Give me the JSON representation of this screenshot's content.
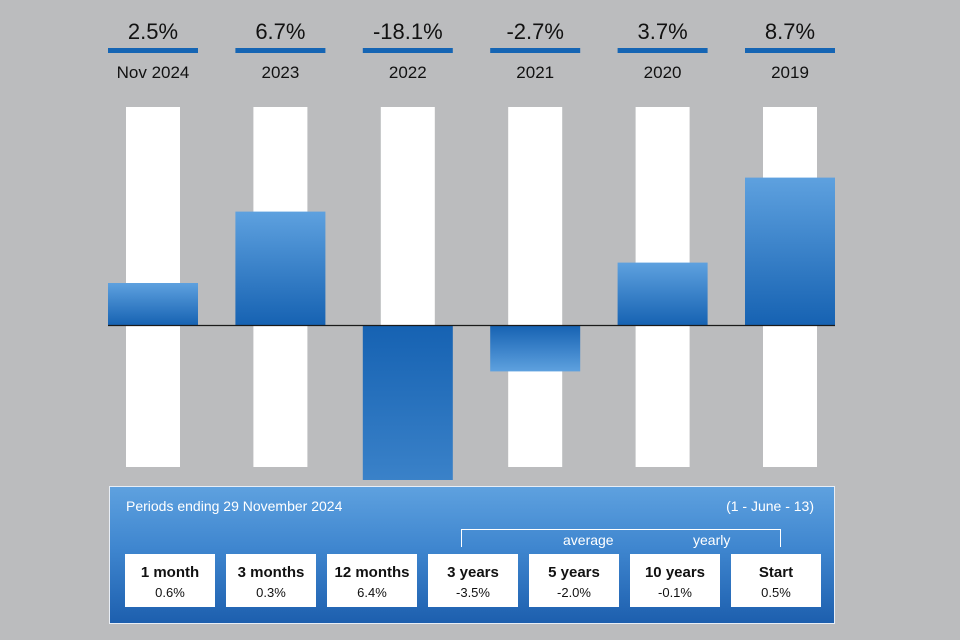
{
  "chart_data": {
    "type": "bar",
    "categories": [
      "Nov 2024",
      "2023",
      "2022",
      "2021",
      "2020",
      "2019"
    ],
    "values": [
      2.5,
      6.7,
      -18.1,
      -2.7,
      3.7,
      8.7
    ],
    "value_labels": [
      "2.5%",
      "6.7%",
      "-18.1%",
      "-2.7%",
      "3.7%",
      "8.7%"
    ],
    "ylim": [
      -20,
      10
    ],
    "grid": false,
    "colors": {
      "bar_top": "#5ea1df",
      "bar_bottom": "#1662b2",
      "track": "#ffffff",
      "header_rule": "#1565b4",
      "background": "#bbbcbe"
    }
  },
  "summary": {
    "title": "Periods ending 29 November 2024",
    "date": "(1 - June - 13)",
    "average_label": "average",
    "yearly_label": "yearly",
    "periods": [
      {
        "label": "1 month",
        "value": "0.6%"
      },
      {
        "label": "3 months",
        "value": "0.3%"
      },
      {
        "label": "12 months",
        "value": "6.4%"
      },
      {
        "label": "3 years",
        "value": "-3.5%"
      },
      {
        "label": "5 years",
        "value": "-2.0%"
      },
      {
        "label": "10 years",
        "value": "-0.1%"
      },
      {
        "label": "Start",
        "value": "0.5%"
      }
    ]
  }
}
